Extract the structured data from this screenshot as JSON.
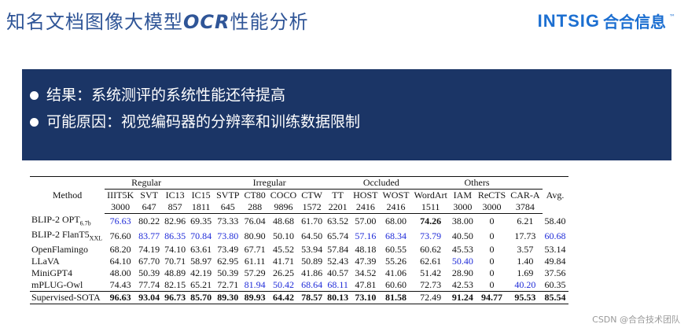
{
  "slide": {
    "title_pre": "知名文档图像大模型",
    "title_ocr": "OCR",
    "title_post": "性能分析",
    "logo_en": "INTSIG",
    "logo_cn": "合合信息",
    "logo_tm": "™",
    "bullets": [
      "结果：系统测评的系统性能还待提高",
      "可能原因：视觉编码器的分辨率和训练数据限制"
    ],
    "watermark": "CSDN @合合技术团队"
  },
  "table": {
    "method_header": "Method",
    "avg_header": "Avg.",
    "groups": [
      {
        "label": "Regular",
        "span": 3
      },
      {
        "label": "Irregular",
        "span": 6
      },
      {
        "label": "Occluded",
        "span": 2
      },
      {
        "label": "Others",
        "span": 4
      }
    ],
    "datasets": [
      "IIIT5K",
      "SVT",
      "IC13",
      "IC15",
      "SVTP",
      "CT80",
      "COCO",
      "CTW",
      "TT",
      "HOST",
      "WOST",
      "WordArt",
      "IAM",
      "ReCTS",
      "CAR-A"
    ],
    "sizes": [
      "3000",
      "647",
      "857",
      "1811",
      "645",
      "288",
      "9896",
      "1572",
      "2201",
      "2416",
      "2416",
      "1511",
      "3000",
      "3000",
      "3784"
    ],
    "rows": [
      {
        "method": "BLIP-2 OPT",
        "sub": "6.7b",
        "values": [
          "76.63",
          "80.22",
          "82.96",
          "69.35",
          "73.33",
          "76.04",
          "48.68",
          "61.70",
          "63.52",
          "57.00",
          "68.00",
          "74.26",
          "38.00",
          "0",
          "6.21",
          "58.40"
        ],
        "styles": [
          "u",
          "",
          "",
          "",
          "",
          "",
          "",
          "",
          "",
          "",
          "",
          "b",
          "",
          "",
          "",
          ""
        ]
      },
      {
        "method": "BLIP-2 FlanT5",
        "sub": "XXL",
        "values": [
          "76.60",
          "83.77",
          "86.35",
          "70.84",
          "73.80",
          "80.90",
          "50.10",
          "64.50",
          "65.74",
          "57.16",
          "68.34",
          "73.79",
          "40.50",
          "0",
          "17.73",
          "60.68"
        ],
        "styles": [
          "",
          "u",
          "u",
          "u",
          "u",
          "",
          "",
          "",
          "",
          "u",
          "u",
          "u",
          "",
          "",
          "",
          "u"
        ]
      },
      {
        "method": "OpenFlamingo",
        "sub": "",
        "values": [
          "68.20",
          "74.19",
          "74.10",
          "63.61",
          "73.49",
          "67.71",
          "45.52",
          "53.94",
          "57.84",
          "48.18",
          "60.55",
          "60.62",
          "45.53",
          "0",
          "3.57",
          "53.14"
        ],
        "styles": [
          "",
          "",
          "",
          "",
          "",
          "",
          "",
          "",
          "",
          "",
          "",
          "",
          "",
          "",
          "",
          ""
        ]
      },
      {
        "method": "LLaVA",
        "sub": "",
        "values": [
          "64.10",
          "67.70",
          "70.71",
          "58.97",
          "62.95",
          "61.11",
          "41.71",
          "50.89",
          "52.43",
          "47.39",
          "55.26",
          "62.61",
          "50.40",
          "0",
          "1.40",
          "49.84"
        ],
        "styles": [
          "",
          "",
          "",
          "",
          "",
          "",
          "",
          "",
          "",
          "",
          "",
          "",
          "u",
          "",
          "",
          ""
        ]
      },
      {
        "method": "MiniGPT4",
        "sub": "",
        "values": [
          "48.00",
          "50.39",
          "48.89",
          "42.19",
          "50.39",
          "57.29",
          "26.25",
          "41.86",
          "40.57",
          "34.52",
          "41.06",
          "51.42",
          "28.90",
          "0",
          "1.69",
          "37.56"
        ],
        "styles": [
          "",
          "",
          "",
          "",
          "",
          "",
          "",
          "",
          "",
          "",
          "",
          "",
          "",
          "",
          "",
          ""
        ]
      },
      {
        "method": "mPLUG-Owl",
        "sub": "",
        "values": [
          "74.43",
          "77.74",
          "82.15",
          "65.21",
          "72.71",
          "81.94",
          "50.42",
          "68.64",
          "68.11",
          "47.81",
          "60.60",
          "72.73",
          "42.53",
          "0",
          "40.20",
          "60.35"
        ],
        "styles": [
          "",
          "",
          "",
          "",
          "",
          "u",
          "u",
          "u",
          "u",
          "",
          "",
          "",
          "",
          "",
          "u",
          ""
        ]
      }
    ],
    "sota": {
      "method": "Supervised-SOTA",
      "values": [
        "96.63",
        "93.04",
        "96.73",
        "85.70",
        "89.30",
        "89.93",
        "64.42",
        "78.57",
        "80.13",
        "73.10",
        "81.58",
        "72.49",
        "91.24",
        "94.77",
        "95.53",
        "85.54"
      ],
      "styles": [
        "b",
        "b",
        "b",
        "b",
        "b",
        "b",
        "b",
        "b",
        "b",
        "b",
        "b",
        "",
        "b",
        "b",
        "b",
        "b"
      ]
    }
  }
}
